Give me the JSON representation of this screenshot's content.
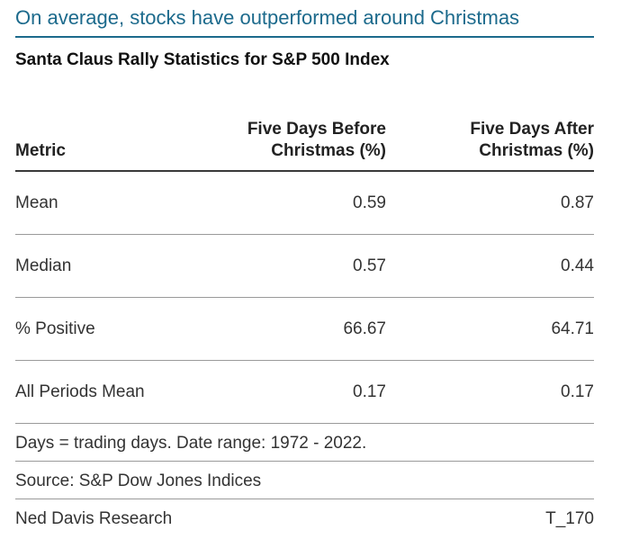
{
  "headline": "On average, stocks have outperformed around Christmas",
  "colors": {
    "headline": "#1c6a8c",
    "text": "#333333",
    "rule": "#9a9a9a"
  },
  "chart_data": {
    "type": "table",
    "title": "Santa Claus Rally Statistics for S&P 500 Index",
    "columns": [
      "Metric",
      "Five Days Before\nChristmas (%)",
      "Five Days After\nChristmas (%)"
    ],
    "rows": [
      {
        "metric": "Mean",
        "before": "0.59",
        "after": "0.87"
      },
      {
        "metric": "Median",
        "before": "0.57",
        "after": "0.44"
      },
      {
        "metric": "% Positive",
        "before": "66.67",
        "after": "64.71"
      },
      {
        "metric": "All Periods Mean",
        "before": "0.17",
        "after": "0.17"
      }
    ],
    "note": "Days = trading days. Date range: 1972 - 2022.",
    "source": "Source: S&P Dow Jones Indices",
    "credit": "Ned Davis Research",
    "code": "T_170"
  }
}
